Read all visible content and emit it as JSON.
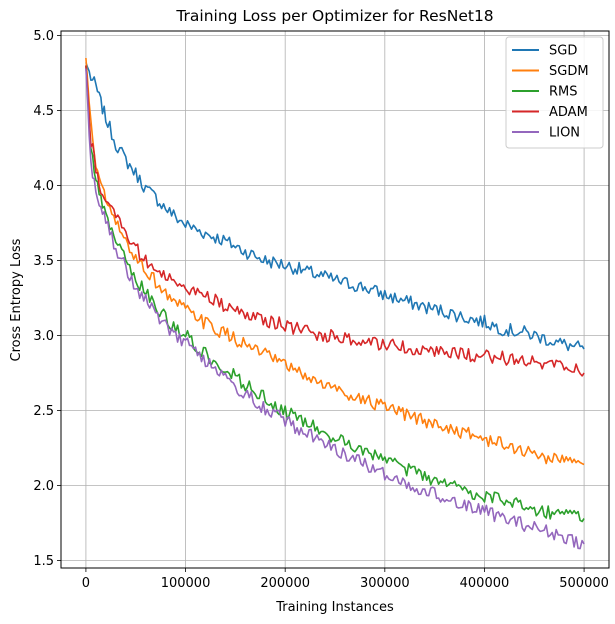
{
  "chart_data": {
    "type": "line",
    "title": "Training Loss per Optimizer for ResNet18",
    "xlabel": "Training Instances",
    "ylabel": "Cross Entropy Loss",
    "xlim": [
      -25000,
      525000
    ],
    "ylim": [
      1.45,
      5.03
    ],
    "x_ticks": [
      0,
      100000,
      200000,
      300000,
      400000,
      500000
    ],
    "x_tick_labels": [
      "0",
      "100000",
      "200000",
      "300000",
      "400000",
      "500000"
    ],
    "y_ticks": [
      1.5,
      2.0,
      2.5,
      3.0,
      3.5,
      4.0,
      4.5,
      5.0
    ],
    "y_tick_labels": [
      "1.5",
      "2.0",
      "2.5",
      "3.0",
      "3.5",
      "4.0",
      "4.5",
      "5.0"
    ],
    "grid": true,
    "legend_position": "top-right",
    "series": [
      {
        "name": "SGD",
        "color": "#1f77b4",
        "x": [
          0,
          5000,
          10000,
          15000,
          20000,
          30000,
          40000,
          50000,
          60000,
          70000,
          80000,
          90000,
          100000,
          120000,
          140000,
          160000,
          180000,
          200000,
          220000,
          240000,
          260000,
          280000,
          300000,
          320000,
          340000,
          360000,
          380000,
          400000,
          420000,
          440000,
          460000,
          480000,
          500000
        ],
        "y": [
          4.82,
          4.72,
          4.66,
          4.55,
          4.45,
          4.28,
          4.17,
          4.08,
          3.98,
          3.92,
          3.85,
          3.79,
          3.74,
          3.68,
          3.63,
          3.56,
          3.5,
          3.47,
          3.43,
          3.39,
          3.35,
          3.32,
          3.27,
          3.23,
          3.19,
          3.16,
          3.12,
          3.09,
          3.04,
          3.02,
          2.98,
          2.94,
          2.91
        ]
      },
      {
        "name": "SGDM",
        "color": "#ff7f0e",
        "x": [
          0,
          5000,
          10000,
          15000,
          20000,
          30000,
          40000,
          50000,
          60000,
          70000,
          80000,
          90000,
          100000,
          120000,
          140000,
          160000,
          180000,
          200000,
          220000,
          240000,
          260000,
          280000,
          300000,
          320000,
          340000,
          360000,
          380000,
          400000,
          420000,
          440000,
          460000,
          480000,
          500000
        ],
        "y": [
          4.85,
          4.4,
          4.15,
          4.0,
          3.9,
          3.75,
          3.62,
          3.52,
          3.44,
          3.36,
          3.28,
          3.22,
          3.17,
          3.08,
          3.01,
          2.94,
          2.87,
          2.8,
          2.73,
          2.67,
          2.62,
          2.57,
          2.52,
          2.47,
          2.43,
          2.39,
          2.35,
          2.31,
          2.27,
          2.23,
          2.19,
          2.17,
          2.14
        ]
      },
      {
        "name": "RMS",
        "color": "#2ca02c",
        "x": [
          0,
          5000,
          10000,
          15000,
          20000,
          30000,
          40000,
          50000,
          60000,
          70000,
          80000,
          90000,
          100000,
          120000,
          140000,
          160000,
          180000,
          200000,
          220000,
          240000,
          260000,
          280000,
          300000,
          320000,
          340000,
          360000,
          380000,
          400000,
          420000,
          440000,
          460000,
          480000,
          500000
        ],
        "y": [
          4.8,
          4.25,
          4.02,
          3.9,
          3.8,
          3.62,
          3.5,
          3.38,
          3.28,
          3.19,
          3.12,
          3.05,
          3.0,
          2.88,
          2.78,
          2.67,
          2.58,
          2.49,
          2.42,
          2.35,
          2.28,
          2.22,
          2.17,
          2.11,
          2.06,
          2.01,
          1.97,
          1.93,
          1.9,
          1.86,
          1.83,
          1.8,
          1.78
        ]
      },
      {
        "name": "ADAM",
        "color": "#d62728",
        "x": [
          0,
          5000,
          10000,
          15000,
          20000,
          30000,
          40000,
          50000,
          60000,
          70000,
          80000,
          90000,
          100000,
          120000,
          140000,
          160000,
          180000,
          200000,
          220000,
          240000,
          260000,
          280000,
          300000,
          320000,
          340000,
          360000,
          380000,
          400000,
          420000,
          440000,
          460000,
          480000,
          500000
        ],
        "y": [
          4.8,
          4.3,
          4.1,
          3.98,
          3.9,
          3.78,
          3.68,
          3.58,
          3.5,
          3.44,
          3.39,
          3.36,
          3.33,
          3.26,
          3.2,
          3.14,
          3.1,
          3.07,
          3.03,
          3.0,
          2.98,
          2.95,
          2.94,
          2.92,
          2.9,
          2.88,
          2.87,
          2.86,
          2.85,
          2.83,
          2.82,
          2.8,
          2.75
        ]
      },
      {
        "name": "LION",
        "color": "#9467bd",
        "x": [
          0,
          5000,
          10000,
          15000,
          20000,
          30000,
          40000,
          50000,
          60000,
          70000,
          80000,
          90000,
          100000,
          120000,
          140000,
          160000,
          180000,
          200000,
          220000,
          240000,
          260000,
          280000,
          300000,
          320000,
          340000,
          360000,
          380000,
          400000,
          420000,
          440000,
          460000,
          480000,
          500000
        ],
        "y": [
          4.78,
          4.15,
          3.95,
          3.85,
          3.75,
          3.58,
          3.45,
          3.33,
          3.23,
          3.14,
          3.06,
          3.0,
          2.95,
          2.83,
          2.72,
          2.61,
          2.51,
          2.43,
          2.35,
          2.28,
          2.21,
          2.14,
          2.08,
          2.02,
          1.97,
          1.92,
          1.87,
          1.83,
          1.78,
          1.74,
          1.7,
          1.66,
          1.61
        ]
      }
    ]
  }
}
